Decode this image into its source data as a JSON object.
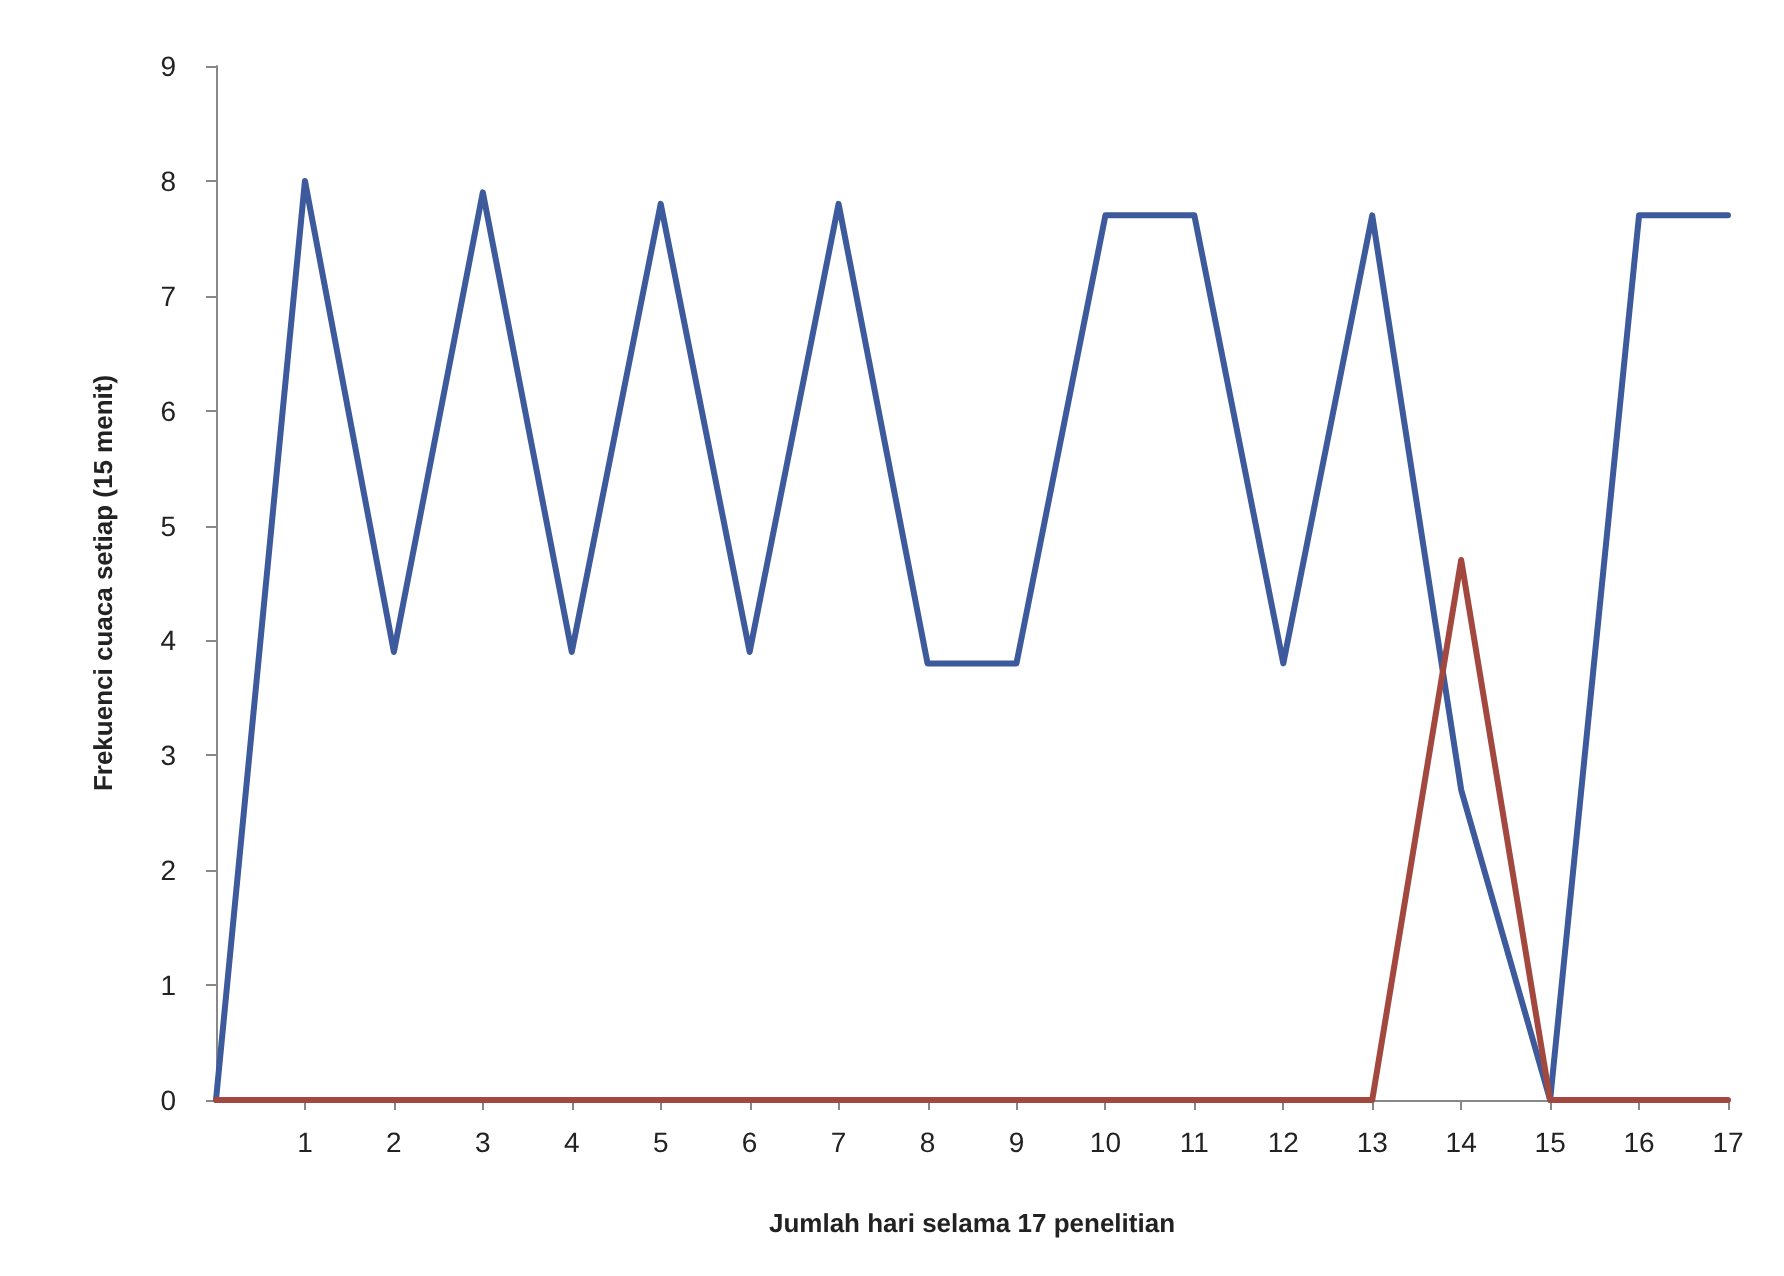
{
  "chart_data": {
    "type": "line",
    "xlabel": "Jumlah hari selama 17 penelitian",
    "ylabel": "Frekuenci cuaca setiap (15 menit)",
    "x": [
      0,
      1,
      2,
      3,
      4,
      5,
      6,
      7,
      8,
      9,
      10,
      11,
      12,
      13,
      14,
      15,
      16,
      17
    ],
    "series": [
      {
        "color": "#3d5a9c",
        "values": [
          0,
          8,
          3.9,
          7.9,
          3.9,
          7.8,
          3.9,
          7.8,
          3.8,
          3.8,
          7.7,
          7.7,
          3.8,
          7.7,
          2.7,
          0,
          7.7,
          7.7
        ]
      },
      {
        "color": "#a3483e",
        "values": [
          0,
          0,
          0,
          0,
          0,
          0,
          0,
          0,
          0,
          0,
          0,
          0,
          0,
          0,
          4.7,
          0,
          0,
          0
        ]
      }
    ],
    "xlim": [
      0,
      17
    ],
    "xticks": [
      1,
      2,
      3,
      4,
      5,
      6,
      7,
      8,
      9,
      10,
      11,
      12,
      13,
      14,
      15,
      16,
      17
    ],
    "ylim": [
      0,
      9
    ],
    "yticks": [
      0,
      1,
      2,
      3,
      4,
      5,
      6,
      7,
      8,
      9
    ],
    "grid": false,
    "marker": "none",
    "line_style": "solid"
  }
}
